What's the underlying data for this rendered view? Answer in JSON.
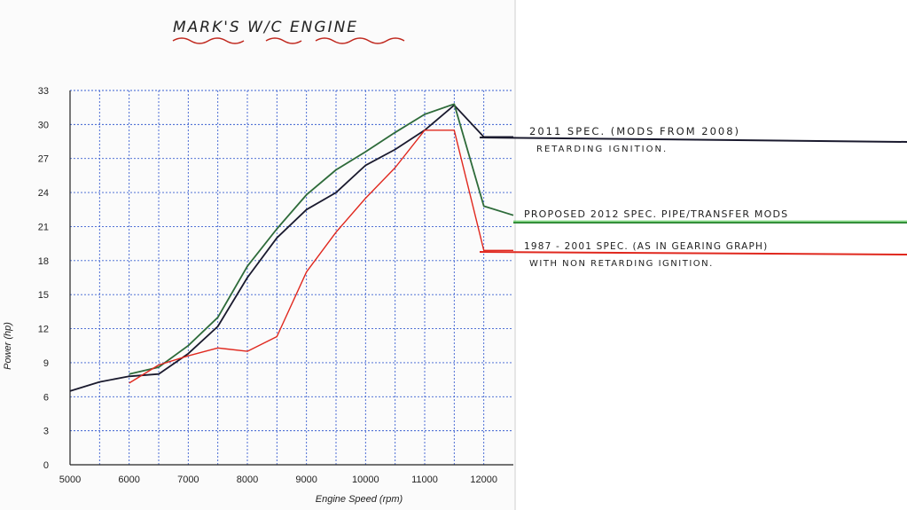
{
  "chart_data": {
    "type": "line",
    "title": "MARK'S W/C ENGINE",
    "xlabel": "Engine Speed (rpm)",
    "ylabel": "Power (hp)",
    "xlim": [
      5000,
      12500
    ],
    "ylim": [
      0,
      33
    ],
    "x_ticks": [
      5000,
      6000,
      7000,
      8000,
      9000,
      10000,
      11000,
      12000
    ],
    "y_ticks": [
      0,
      3,
      6,
      9,
      12,
      15,
      18,
      21,
      24,
      27,
      30,
      33
    ],
    "grid": true,
    "series": [
      {
        "name": "2011 SPEC. (MODS FROM 2008) RETARDING IGNITION.",
        "color": "#1a1a2e",
        "points": [
          [
            5000,
            6.5
          ],
          [
            5500,
            7.3
          ],
          [
            6000,
            7.8
          ],
          [
            6500,
            8.0
          ],
          [
            7000,
            9.8
          ],
          [
            7500,
            12.2
          ],
          [
            8000,
            16.5
          ],
          [
            8500,
            20.0
          ],
          [
            9000,
            22.5
          ],
          [
            9500,
            24.0
          ],
          [
            10000,
            26.4
          ],
          [
            10500,
            27.8
          ],
          [
            11000,
            29.5
          ],
          [
            11500,
            31.7
          ],
          [
            12000,
            28.9
          ],
          [
            12500,
            28.9
          ]
        ]
      },
      {
        "name": "PROPOSED 2012 SPEC. PIPE/TRANSFER MODS",
        "color": "#2e6b3a",
        "points": [
          [
            6000,
            8.0
          ],
          [
            6500,
            8.6
          ],
          [
            7000,
            10.5
          ],
          [
            7500,
            13.0
          ],
          [
            8000,
            17.5
          ],
          [
            8500,
            20.8
          ],
          [
            9000,
            23.8
          ],
          [
            9500,
            26.0
          ],
          [
            10000,
            27.6
          ],
          [
            10500,
            29.3
          ],
          [
            11000,
            30.9
          ],
          [
            11500,
            31.8
          ],
          [
            12000,
            22.8
          ],
          [
            12500,
            22.0
          ]
        ]
      },
      {
        "name": "1987 - 2001 SPEC. (AS IN GEARING GRAPH) WITH NON RETARDING IGNITION.",
        "color": "#e0281e",
        "points": [
          [
            6000,
            7.2
          ],
          [
            6500,
            8.8
          ],
          [
            7000,
            9.6
          ],
          [
            7500,
            10.3
          ],
          [
            8000,
            10.0
          ],
          [
            8500,
            11.3
          ],
          [
            9000,
            17.0
          ],
          [
            9500,
            20.5
          ],
          [
            10000,
            23.5
          ],
          [
            10500,
            26.2
          ],
          [
            11000,
            29.5
          ],
          [
            11500,
            29.5
          ],
          [
            12000,
            18.9
          ],
          [
            12500,
            18.9
          ]
        ]
      }
    ]
  },
  "annotations": {
    "black_line1": "2011 SPEC. (MODS FROM 2008)",
    "black_line2": "RETARDING IGNITION.",
    "green_line1": "PROPOSED 2012 SPEC. PIPE/TRANSFER MODS",
    "red_line1": "1987 - 2001 SPEC. (AS IN GEARING GRAPH)",
    "red_line2": "WITH NON RETARDING IGNITION."
  }
}
